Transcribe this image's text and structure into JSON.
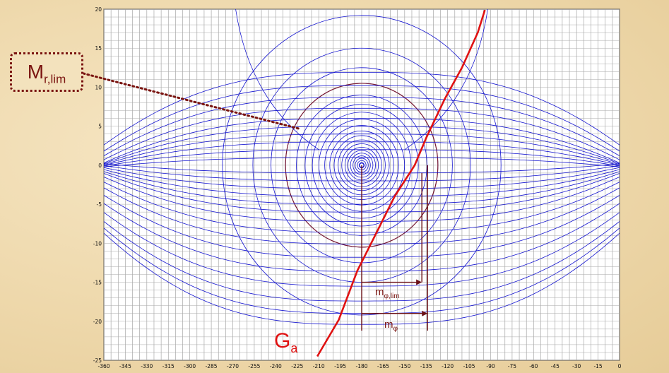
{
  "chart_data": {
    "type": "line",
    "xlim": [
      -360,
      0
    ],
    "ylim": [
      -25,
      20
    ],
    "x_ticks": [
      -360,
      -345,
      -330,
      -315,
      -300,
      -285,
      -270,
      -255,
      -240,
      -225,
      -210,
      -195,
      -180,
      -165,
      -150,
      -135,
      -120,
      -105,
      -90,
      -75,
      -60,
      -45,
      -30,
      -15,
      0
    ],
    "y_ticks": [
      20,
      15,
      10,
      5,
      0,
      -5,
      -10,
      -15,
      -20,
      -25
    ],
    "grid": true,
    "curves": {
      "series_name": "Ga",
      "ga": [
        [
          -211,
          -24.5
        ],
        [
          -196,
          -19.8
        ],
        [
          -183,
          -13.5
        ],
        [
          -172,
          -9.5
        ],
        [
          -157,
          -4
        ],
        [
          -143,
          0
        ],
        [
          -135,
          3.5
        ],
        [
          -122,
          8.5
        ],
        [
          -110,
          12.5
        ],
        [
          -99,
          17
        ],
        [
          -94,
          19.9
        ]
      ],
      "mr_lim_circle": {
        "center_x": -180,
        "center_y": 0,
        "radius_db": 10.5
      },
      "mphi_x": -134,
      "mphi_lim_x": -138
    },
    "annotations": {
      "mr_lim": {
        "main": "M",
        "sub": "r,lim"
      },
      "ga": {
        "main": "G",
        "sub": "a"
      },
      "m_phi_lim": {
        "main": "m",
        "sub": "φ,lim"
      },
      "m_phi": {
        "main": "m",
        "sub": "φ"
      }
    },
    "colors": {
      "grid_lines": "#1515d0",
      "ga_curve": "#e01212",
      "limit_marks": "#7a1410"
    }
  }
}
